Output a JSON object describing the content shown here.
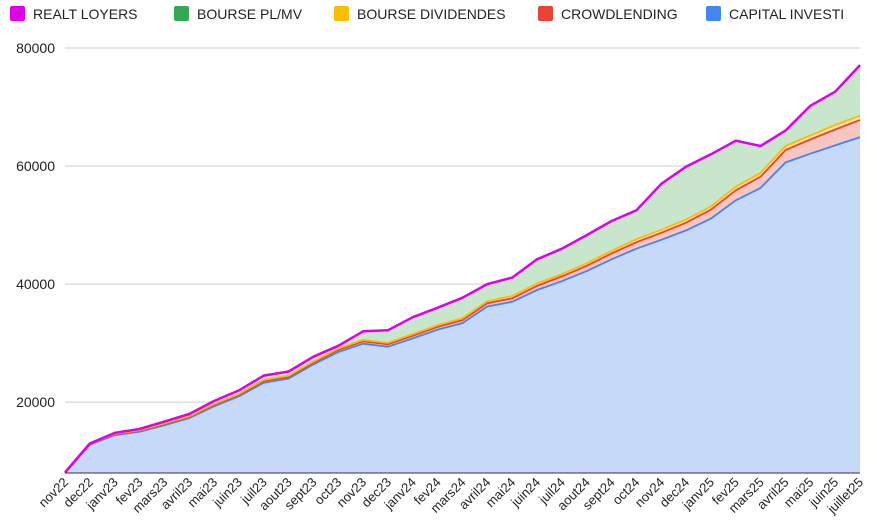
{
  "chart_data": {
    "type": "area",
    "stacked": true,
    "grid": true,
    "legend_position": "top-left",
    "ylim": [
      8000,
      80000
    ],
    "y_ticks": [
      "20000",
      "40000",
      "60000",
      "80000"
    ],
    "x": [
      "nov22",
      "dec22",
      "janv23",
      "fev23",
      "mars23",
      "avril23",
      "mai23",
      "juin23",
      "juil23",
      "aout23",
      "sept23",
      "oct23",
      "nov23",
      "dec23",
      "janv24",
      "fev24",
      "mars24",
      "avril24",
      "mai24",
      "juin24",
      "juil24",
      "aout24",
      "sept24",
      "oct24",
      "nov24",
      "dec24",
      "janv25",
      "fev25",
      "mars25",
      "avril25",
      "mai25",
      "juin25",
      "juillet25"
    ],
    "series": [
      {
        "name": "CAPITAL INVESTI",
        "color": "#4285f4",
        "fill": "#c6d9f8",
        "values": [
          7900,
          12800,
          14400,
          15000,
          16100,
          17300,
          19300,
          21000,
          23300,
          24000,
          26400,
          28500,
          29900,
          29400,
          30800,
          32300,
          33400,
          36200,
          37000,
          39000,
          40500,
          42200,
          44200,
          46000,
          47500,
          49100,
          51100,
          54200,
          56300,
          60600,
          62100,
          63500,
          64900
        ]
      },
      {
        "name": "CROWDLENDING",
        "color": "#ea4335",
        "fill": "#f7c6c2",
        "values": [
          100,
          100,
          150,
          150,
          200,
          200,
          250,
          250,
          300,
          300,
          300,
          350,
          400,
          400,
          450,
          450,
          500,
          550,
          600,
          700,
          800,
          900,
          1000,
          1100,
          1200,
          1300,
          1500,
          1700,
          1900,
          2100,
          2400,
          2700,
          2900
        ]
      },
      {
        "name": "BOURSE DIVIDENDES",
        "color": "#fbbc04",
        "fill": "#fde3a2",
        "values": [
          50,
          50,
          100,
          100,
          100,
          100,
          150,
          150,
          200,
          200,
          200,
          250,
          250,
          250,
          300,
          300,
          350,
          350,
          400,
          400,
          400,
          450,
          450,
          500,
          500,
          550,
          550,
          600,
          650,
          700,
          700,
          750,
          750
        ]
      },
      {
        "name": "BOURSE PL/MV",
        "color": "#34a853",
        "fill": "#c8e6cc",
        "values": [
          50,
          50,
          150,
          200,
          300,
          400,
          500,
          600,
          700,
          700,
          800,
          450,
          1450,
          2150,
          2850,
          2950,
          3450,
          2900,
          3100,
          4100,
          4300,
          4750,
          5050,
          4900,
          7800,
          8950,
          8850,
          7800,
          4550,
          2600,
          5000,
          5650,
          8550
        ]
      },
      {
        "name": "REALT LOYERS",
        "color": "#e000e8",
        "fill": "#f0b8f3",
        "values": [
          0,
          0,
          0,
          0,
          0,
          0,
          0,
          0,
          0,
          0,
          0,
          0,
          0,
          0,
          0,
          0,
          0,
          0,
          0,
          0,
          0,
          0,
          0,
          0,
          0,
          0,
          0,
          0,
          0,
          0,
          0,
          0,
          0
        ]
      }
    ]
  }
}
